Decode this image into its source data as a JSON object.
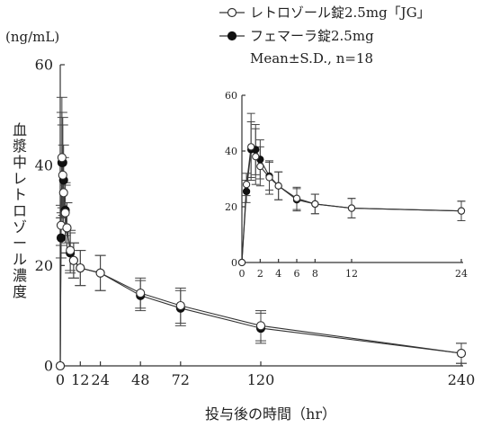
{
  "chart_data": [
    {
      "type": "line",
      "role": "main",
      "ylabel": "血漿中レトロゾール濃度",
      "yunit": "(ng/mL)",
      "xlabel": "投与後の時間（hr）",
      "xticks": [
        0,
        12,
        24,
        48,
        72,
        120,
        240
      ],
      "yticks": [
        0,
        20,
        40,
        60
      ],
      "xlim": [
        0,
        240
      ],
      "ylim": [
        0,
        60
      ],
      "grid": false,
      "legend": {
        "placement": "top-right",
        "entries": [
          {
            "name": "レトロゾール錠2.5mg「JG」",
            "marker": "open-circle"
          },
          {
            "name": "フェマーラ錠2.5mg",
            "marker": "filled-circle"
          }
        ],
        "note": "Mean±S.D.,  n=18"
      },
      "series": [
        {
          "name": "レトロゾール錠2.5mg「JG」",
          "marker": "open",
          "x": [
            0,
            0.5,
            1,
            1.5,
            2,
            3,
            4,
            6,
            8,
            12,
            24,
            48,
            72,
            120,
            240
          ],
          "y": [
            0,
            28,
            41.5,
            38,
            34.5,
            30.5,
            27.5,
            23,
            21,
            19.5,
            18.5,
            14.5,
            12,
            8,
            2.5
          ],
          "sd": [
            0,
            4,
            12,
            10,
            7,
            6,
            5,
            4,
            3.5,
            3.5,
            3.5,
            3,
            3.5,
            3,
            2
          ]
        },
        {
          "name": "フェマーラ錠2.5mg",
          "marker": "filled",
          "x": [
            0,
            0.5,
            1,
            1.5,
            2,
            3,
            4,
            6,
            8,
            12,
            24,
            48,
            72,
            120,
            240
          ],
          "y": [
            0,
            25.5,
            40.5,
            40.5,
            37,
            31,
            27.5,
            22.5,
            21,
            19.5,
            18.5,
            14,
            11.5,
            7.5,
            2.5
          ],
          "sd": [
            0,
            4,
            10,
            9,
            7,
            5,
            5,
            4,
            3.5,
            3.5,
            3.5,
            3,
            3.5,
            3,
            2
          ]
        }
      ]
    },
    {
      "type": "line",
      "role": "inset",
      "xticks": [
        0,
        2,
        4,
        6,
        8,
        12,
        24
      ],
      "yticks": [
        0,
        20,
        40,
        60
      ],
      "xlim": [
        0,
        24
      ],
      "ylim": [
        0,
        60
      ],
      "series": [
        {
          "name": "レトロゾール錠2.5mg「JG」",
          "marker": "open",
          "x": [
            0,
            0.5,
            1,
            1.5,
            2,
            3,
            4,
            6,
            8,
            12,
            24
          ],
          "y": [
            0,
            28,
            41.5,
            38,
            34.5,
            30.5,
            27.5,
            23,
            21,
            19.5,
            18.5
          ],
          "sd": [
            0,
            4,
            12,
            10,
            7,
            6,
            5,
            4,
            3.5,
            3.5,
            3.5
          ]
        },
        {
          "name": "フェマーラ錠2.5mg",
          "marker": "filled",
          "x": [
            0,
            0.5,
            1,
            1.5,
            2,
            3,
            4,
            6,
            8,
            12,
            24
          ],
          "y": [
            0,
            25.5,
            40.5,
            40.5,
            37,
            31,
            27.5,
            22.5,
            21,
            19.5,
            18.5
          ],
          "sd": [
            0,
            4,
            10,
            9,
            7,
            5,
            5,
            4,
            3.5,
            3.5,
            3.5
          ]
        }
      ]
    }
  ]
}
